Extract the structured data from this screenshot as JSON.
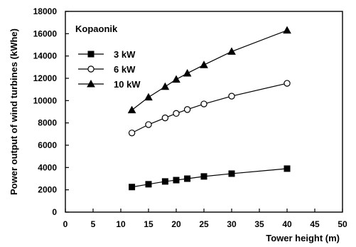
{
  "chart_data": {
    "type": "line",
    "title": "",
    "annotation": "Kopaonik",
    "xlabel": "Tower height (m)",
    "ylabel": "Power output of wind turbines (kWhe)",
    "xlim": [
      0,
      50
    ],
    "ylim": [
      0,
      18000
    ],
    "x_ticks": [
      0,
      5,
      10,
      15,
      20,
      25,
      30,
      35,
      40,
      45,
      50
    ],
    "y_ticks": [
      0,
      2000,
      4000,
      6000,
      8000,
      10000,
      12000,
      14000,
      16000,
      18000
    ],
    "grid": false,
    "legend_position": "top-left",
    "series": [
      {
        "name": "3 kW",
        "marker": "filled-square",
        "color": "#000000",
        "x": [
          12,
          15,
          18,
          20,
          22,
          25,
          30,
          40
        ],
        "y": [
          2250,
          2500,
          2750,
          2870,
          3000,
          3200,
          3450,
          3900
        ]
      },
      {
        "name": "6 kW",
        "marker": "open-circle",
        "color": "#000000",
        "x": [
          12,
          15,
          18,
          20,
          22,
          25,
          30,
          40
        ],
        "y": [
          7100,
          7850,
          8450,
          8850,
          9200,
          9700,
          10400,
          11550
        ]
      },
      {
        "name": "10 kW",
        "marker": "filled-triangle",
        "color": "#000000",
        "x": [
          12,
          15,
          18,
          20,
          22,
          25,
          30,
          40
        ],
        "y": [
          9150,
          10300,
          11250,
          11900,
          12450,
          13200,
          14400,
          16300
        ]
      }
    ]
  }
}
